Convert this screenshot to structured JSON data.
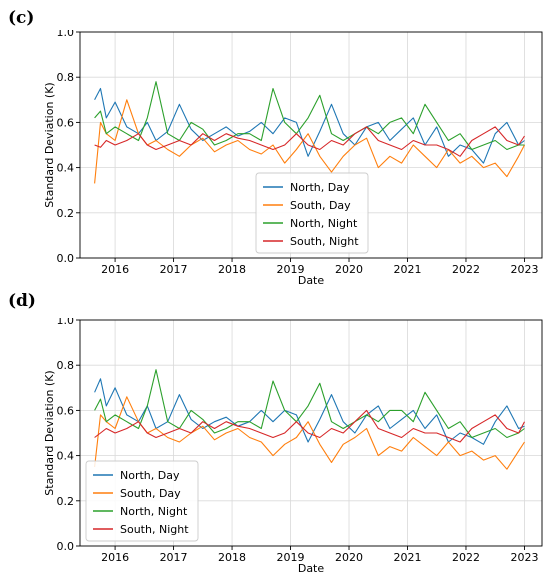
{
  "panels": [
    {
      "label": "(c)",
      "legend_location": "lower center"
    },
    {
      "label": "(d)",
      "legend_location": "lower left"
    }
  ],
  "chart_data": [
    {
      "type": "line",
      "xlabel": "Date",
      "ylabel": "Standard Deviation (K)",
      "xlim": [
        2015.4,
        2023.3
      ],
      "ylim": [
        0.0,
        1.0
      ],
      "xticks": [
        2016,
        2017,
        2018,
        2019,
        2020,
        2021,
        2022,
        2023
      ],
      "xtick_labels": [
        "2016",
        "2017",
        "2018",
        "2019",
        "2020",
        "2021",
        "2022",
        "2023"
      ],
      "yticks": [
        0.0,
        0.2,
        0.4,
        0.6,
        0.8,
        1.0
      ],
      "ytick_labels": [
        "0.0",
        "0.2",
        "0.4",
        "0.6",
        "0.8",
        "1.0"
      ],
      "grid": true,
      "legend": "lower center",
      "series": [
        {
          "name": "North, Day",
          "color": "#1f77b4",
          "x": [
            2015.65,
            2015.75,
            2015.85,
            2016.0,
            2016.2,
            2016.4,
            2016.55,
            2016.7,
            2016.9,
            2017.1,
            2017.3,
            2017.5,
            2017.7,
            2017.9,
            2018.1,
            2018.3,
            2018.5,
            2018.7,
            2018.9,
            2019.1,
            2019.3,
            2019.5,
            2019.7,
            2019.9,
            2020.1,
            2020.3,
            2020.5,
            2020.7,
            2020.9,
            2021.1,
            2021.3,
            2021.5,
            2021.7,
            2021.9,
            2022.1,
            2022.3,
            2022.5,
            2022.7,
            2022.9,
            2023.0
          ],
          "y": [
            0.7,
            0.75,
            0.62,
            0.69,
            0.58,
            0.55,
            0.6,
            0.52,
            0.56,
            0.68,
            0.57,
            0.52,
            0.55,
            0.58,
            0.54,
            0.56,
            0.6,
            0.55,
            0.62,
            0.6,
            0.45,
            0.56,
            0.68,
            0.55,
            0.5,
            0.58,
            0.6,
            0.52,
            0.57,
            0.62,
            0.5,
            0.58,
            0.45,
            0.5,
            0.48,
            0.42,
            0.55,
            0.6,
            0.5,
            0.52
          ]
        },
        {
          "name": "South, Day",
          "color": "#ff7f0e",
          "x": [
            2015.65,
            2015.75,
            2015.85,
            2016.0,
            2016.2,
            2016.4,
            2016.55,
            2016.7,
            2016.9,
            2017.1,
            2017.3,
            2017.5,
            2017.7,
            2017.9,
            2018.1,
            2018.3,
            2018.5,
            2018.7,
            2018.9,
            2019.1,
            2019.3,
            2019.5,
            2019.7,
            2019.9,
            2020.1,
            2020.3,
            2020.5,
            2020.7,
            2020.9,
            2021.1,
            2021.3,
            2021.5,
            2021.7,
            2021.9,
            2022.1,
            2022.3,
            2022.5,
            2022.7,
            2022.9,
            2023.0
          ],
          "y": [
            0.33,
            0.6,
            0.55,
            0.52,
            0.7,
            0.55,
            0.5,
            0.52,
            0.48,
            0.45,
            0.5,
            0.53,
            0.47,
            0.5,
            0.52,
            0.48,
            0.46,
            0.5,
            0.42,
            0.48,
            0.55,
            0.45,
            0.38,
            0.45,
            0.5,
            0.53,
            0.4,
            0.45,
            0.42,
            0.5,
            0.45,
            0.4,
            0.48,
            0.42,
            0.45,
            0.4,
            0.42,
            0.36,
            0.45,
            0.5
          ]
        },
        {
          "name": "North, Night",
          "color": "#2ca02c",
          "x": [
            2015.65,
            2015.75,
            2015.85,
            2016.0,
            2016.2,
            2016.4,
            2016.55,
            2016.7,
            2016.9,
            2017.1,
            2017.3,
            2017.5,
            2017.7,
            2017.9,
            2018.1,
            2018.3,
            2018.5,
            2018.7,
            2018.9,
            2019.1,
            2019.3,
            2019.5,
            2019.7,
            2019.9,
            2020.1,
            2020.3,
            2020.5,
            2020.7,
            2020.9,
            2021.1,
            2021.3,
            2021.5,
            2021.7,
            2021.9,
            2022.1,
            2022.3,
            2022.5,
            2022.7,
            2022.9,
            2023.0
          ],
          "y": [
            0.62,
            0.65,
            0.55,
            0.58,
            0.55,
            0.52,
            0.62,
            0.78,
            0.55,
            0.52,
            0.6,
            0.57,
            0.5,
            0.52,
            0.55,
            0.55,
            0.52,
            0.75,
            0.6,
            0.55,
            0.62,
            0.72,
            0.55,
            0.52,
            0.55,
            0.58,
            0.55,
            0.6,
            0.62,
            0.55,
            0.68,
            0.6,
            0.52,
            0.55,
            0.48,
            0.5,
            0.52,
            0.48,
            0.5,
            0.5
          ]
        },
        {
          "name": "South, Night",
          "color": "#d62728",
          "x": [
            2015.65,
            2015.75,
            2015.85,
            2016.0,
            2016.2,
            2016.4,
            2016.55,
            2016.7,
            2016.9,
            2017.1,
            2017.3,
            2017.5,
            2017.7,
            2017.9,
            2018.1,
            2018.3,
            2018.5,
            2018.7,
            2018.9,
            2019.1,
            2019.3,
            2019.5,
            2019.7,
            2019.9,
            2020.1,
            2020.3,
            2020.5,
            2020.7,
            2020.9,
            2021.1,
            2021.3,
            2021.5,
            2021.7,
            2021.9,
            2022.1,
            2022.3,
            2022.5,
            2022.7,
            2022.9,
            2023.0
          ],
          "y": [
            0.5,
            0.49,
            0.52,
            0.5,
            0.52,
            0.55,
            0.5,
            0.48,
            0.5,
            0.52,
            0.5,
            0.55,
            0.52,
            0.55,
            0.53,
            0.52,
            0.5,
            0.48,
            0.5,
            0.55,
            0.5,
            0.48,
            0.52,
            0.5,
            0.55,
            0.58,
            0.52,
            0.5,
            0.48,
            0.52,
            0.5,
            0.5,
            0.48,
            0.45,
            0.52,
            0.55,
            0.58,
            0.52,
            0.5,
            0.54
          ]
        }
      ]
    },
    {
      "type": "line",
      "xlabel": "Date",
      "ylabel": "Standard Deviation (K)",
      "xlim": [
        2015.4,
        2023.3
      ],
      "ylim": [
        0.0,
        1.0
      ],
      "xticks": [
        2016,
        2017,
        2018,
        2019,
        2020,
        2021,
        2022,
        2023
      ],
      "xtick_labels": [
        "2016",
        "2017",
        "2018",
        "2019",
        "2020",
        "2021",
        "2022",
        "2023"
      ],
      "yticks": [
        0.0,
        0.2,
        0.4,
        0.6,
        0.8,
        1.0
      ],
      "ytick_labels": [
        "0.0",
        "0.2",
        "0.4",
        "0.6",
        "0.8",
        "1.0"
      ],
      "grid": true,
      "legend": "lower left",
      "series": [
        {
          "name": "North, Day",
          "color": "#1f77b4",
          "x": [
            2015.65,
            2015.75,
            2015.85,
            2016.0,
            2016.2,
            2016.4,
            2016.55,
            2016.7,
            2016.9,
            2017.1,
            2017.3,
            2017.5,
            2017.7,
            2017.9,
            2018.1,
            2018.3,
            2018.5,
            2018.7,
            2018.9,
            2019.1,
            2019.3,
            2019.5,
            2019.7,
            2019.9,
            2020.1,
            2020.3,
            2020.5,
            2020.7,
            2020.9,
            2021.1,
            2021.3,
            2021.5,
            2021.7,
            2021.9,
            2022.1,
            2022.3,
            2022.5,
            2022.7,
            2022.9,
            2023.0
          ],
          "y": [
            0.68,
            0.74,
            0.62,
            0.7,
            0.58,
            0.55,
            0.62,
            0.52,
            0.55,
            0.67,
            0.56,
            0.52,
            0.55,
            0.57,
            0.53,
            0.55,
            0.6,
            0.55,
            0.6,
            0.58,
            0.46,
            0.56,
            0.67,
            0.55,
            0.5,
            0.58,
            0.62,
            0.52,
            0.56,
            0.6,
            0.52,
            0.58,
            0.46,
            0.5,
            0.48,
            0.45,
            0.55,
            0.62,
            0.52,
            0.53
          ]
        },
        {
          "name": "South, Day",
          "color": "#ff7f0e",
          "x": [
            2015.65,
            2015.75,
            2015.85,
            2016.0,
            2016.2,
            2016.4,
            2016.55,
            2016.7,
            2016.9,
            2017.1,
            2017.3,
            2017.5,
            2017.7,
            2017.9,
            2018.1,
            2018.3,
            2018.5,
            2018.7,
            2018.9,
            2019.1,
            2019.3,
            2019.5,
            2019.7,
            2019.9,
            2020.1,
            2020.3,
            2020.5,
            2020.7,
            2020.9,
            2021.1,
            2021.3,
            2021.5,
            2021.7,
            2021.9,
            2022.1,
            2022.3,
            2022.5,
            2022.7,
            2022.9,
            2023.0
          ],
          "y": [
            0.35,
            0.58,
            0.55,
            0.52,
            0.66,
            0.55,
            0.5,
            0.52,
            0.48,
            0.46,
            0.5,
            0.53,
            0.47,
            0.5,
            0.52,
            0.48,
            0.46,
            0.4,
            0.45,
            0.48,
            0.55,
            0.45,
            0.37,
            0.45,
            0.48,
            0.52,
            0.4,
            0.44,
            0.42,
            0.48,
            0.44,
            0.4,
            0.46,
            0.4,
            0.42,
            0.38,
            0.4,
            0.34,
            0.42,
            0.46
          ]
        },
        {
          "name": "North, Night",
          "color": "#2ca02c",
          "x": [
            2015.65,
            2015.75,
            2015.85,
            2016.0,
            2016.2,
            2016.4,
            2016.55,
            2016.7,
            2016.9,
            2017.1,
            2017.3,
            2017.5,
            2017.7,
            2017.9,
            2018.1,
            2018.3,
            2018.5,
            2018.7,
            2018.9,
            2019.1,
            2019.3,
            2019.5,
            2019.7,
            2019.9,
            2020.1,
            2020.3,
            2020.5,
            2020.7,
            2020.9,
            2021.1,
            2021.3,
            2021.5,
            2021.7,
            2021.9,
            2022.1,
            2022.3,
            2022.5,
            2022.7,
            2022.9,
            2023.0
          ],
          "y": [
            0.6,
            0.65,
            0.55,
            0.58,
            0.55,
            0.52,
            0.62,
            0.78,
            0.55,
            0.52,
            0.6,
            0.56,
            0.5,
            0.52,
            0.55,
            0.55,
            0.52,
            0.73,
            0.6,
            0.55,
            0.62,
            0.72,
            0.55,
            0.52,
            0.55,
            0.58,
            0.55,
            0.6,
            0.6,
            0.55,
            0.68,
            0.6,
            0.52,
            0.55,
            0.48,
            0.5,
            0.52,
            0.48,
            0.5,
            0.52
          ]
        },
        {
          "name": "South, Night",
          "color": "#d62728",
          "x": [
            2015.65,
            2015.75,
            2015.85,
            2016.0,
            2016.2,
            2016.4,
            2016.55,
            2016.7,
            2016.9,
            2017.1,
            2017.3,
            2017.5,
            2017.7,
            2017.9,
            2018.1,
            2018.3,
            2018.5,
            2018.7,
            2018.9,
            2019.1,
            2019.3,
            2019.5,
            2019.7,
            2019.9,
            2020.1,
            2020.3,
            2020.5,
            2020.7,
            2020.9,
            2021.1,
            2021.3,
            2021.5,
            2021.7,
            2021.9,
            2022.1,
            2022.3,
            2022.5,
            2022.7,
            2022.9,
            2023.0
          ],
          "y": [
            0.48,
            0.5,
            0.52,
            0.5,
            0.52,
            0.55,
            0.5,
            0.48,
            0.5,
            0.52,
            0.5,
            0.55,
            0.52,
            0.55,
            0.53,
            0.52,
            0.5,
            0.48,
            0.5,
            0.55,
            0.5,
            0.48,
            0.52,
            0.5,
            0.55,
            0.6,
            0.52,
            0.5,
            0.48,
            0.52,
            0.5,
            0.5,
            0.48,
            0.46,
            0.52,
            0.55,
            0.58,
            0.52,
            0.5,
            0.55
          ]
        }
      ]
    }
  ]
}
